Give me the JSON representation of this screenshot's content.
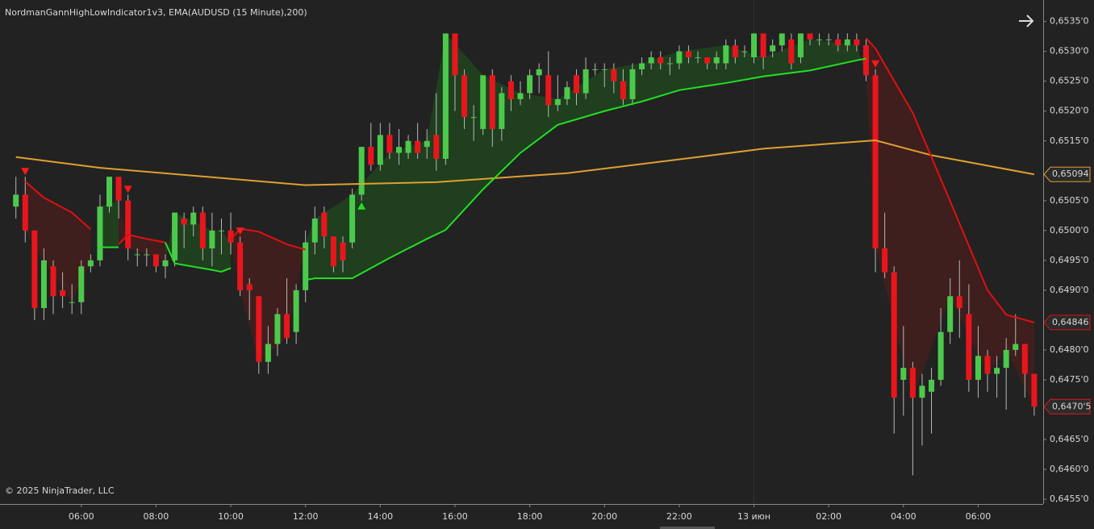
{
  "chart_data": {
    "type": "candlestick",
    "title": "NordmanGannHighLowIndicator1v3, EMA(AUDUSD (15 Minute),200)",
    "copyright": "© 2025 NinjaTrader, LLC",
    "categories": [
      null,
      null,
      null,
      null,
      null,
      null,
      null,
      "06:00",
      null,
      null,
      null,
      null,
      null,
      null,
      null,
      "08:00",
      null,
      null,
      null,
      null,
      null,
      null,
      null,
      "10:00",
      null,
      null,
      null,
      null,
      null,
      null,
      null,
      "12:00",
      null,
      null,
      null,
      null,
      null,
      null,
      null,
      "14:00",
      null,
      null,
      null,
      null,
      null,
      null,
      null,
      "16:00",
      null,
      null,
      null,
      null,
      null,
      null,
      null,
      "18:00",
      null,
      null,
      null,
      null,
      null,
      null,
      null,
      "20:00",
      null,
      null,
      null,
      null,
      null,
      null,
      null,
      "22:00",
      null,
      null,
      null,
      null,
      null,
      null,
      null,
      "13 июн",
      null,
      null,
      null,
      null,
      null,
      null,
      null,
      "02:00",
      null,
      null,
      null,
      null,
      null,
      null,
      null,
      "04:00",
      null,
      null,
      null,
      null,
      null,
      null,
      null,
      "06:00",
      null,
      null,
      null,
      null,
      null,
      null
    ],
    "ylim": [
      0.64542,
      0.65386
    ],
    "yticks": [
      {
        "value": 0.6535,
        "label": "0,6535'0"
      },
      {
        "value": 0.653,
        "label": "0,6530'0"
      },
      {
        "value": 0.6525,
        "label": "0,6525'0"
      },
      {
        "value": 0.652,
        "label": "0,6520'0"
      },
      {
        "value": 0.6515,
        "label": "0,6515'0"
      },
      {
        "value": 0.6505,
        "label": "0,6505'0"
      },
      {
        "value": 0.65,
        "label": "0,6500'0"
      },
      {
        "value": 0.6495,
        "label": "0,6495'0"
      },
      {
        "value": 0.649,
        "label": "0,6490'0"
      },
      {
        "value": 0.648,
        "label": "0,6480'0"
      },
      {
        "value": 0.6475,
        "label": "0,6475'0"
      },
      {
        "value": 0.6465,
        "label": "0,6465'0"
      },
      {
        "value": 0.646,
        "label": "0,6460'0"
      },
      {
        "value": 0.6455,
        "label": "0,6455'0"
      }
    ],
    "up_color": "#4cc94c",
    "down_color": "#e8161c",
    "wick_color": "#b8b8b8",
    "open": [
      0.6504,
      0.6506,
      0.65,
      0.6487,
      0.6494,
      0.649,
      0.6488,
      0.6488,
      0.6494,
      0.6495,
      0.6504,
      0.6509,
      0.6505,
      0.6496,
      0.6496,
      0.6496,
      0.6494,
      0.6495,
      0.6502,
      0.6501,
      0.6503,
      0.6497,
      0.65,
      0.65,
      0.6498,
      0.6491,
      0.6489,
      0.6478,
      0.6481,
      0.6486,
      0.6483,
      0.649,
      0.6498,
      0.6503,
      0.6499,
      0.6498,
      0.6498,
      0.6506,
      0.6514,
      0.6511,
      0.6516,
      0.6513,
      0.6513,
      0.6515,
      0.6514,
      0.6516,
      0.6512,
      0.6533,
      0.6526,
      0.6519,
      0.6517,
      0.6526,
      0.6517,
      0.6525,
      0.6522,
      0.6523,
      0.6526,
      0.6526,
      0.6521,
      0.6522,
      0.6526,
      0.6523,
      0.6527,
      0.6527,
      0.6527,
      0.6525,
      0.6522,
      0.6527,
      0.6528,
      0.6529,
      0.6528,
      0.6528,
      0.653,
      0.6529,
      0.6529,
      0.6528,
      0.6528,
      0.6531,
      0.653,
      0.6529,
      0.6533,
      0.653,
      0.6531,
      0.6532,
      0.6529,
      0.6533,
      0.6532,
      0.6532,
      0.6532,
      0.6531,
      0.6532,
      0.6531,
      0.6526,
      0.6497,
      0.6493,
      0.6475,
      0.6477,
      0.6472,
      0.6473,
      0.6475,
      0.6483,
      0.6489,
      0.6486,
      0.6475,
      0.6479,
      0.6476,
      0.6477,
      0.648,
      0.6481,
      0.6476
    ],
    "high": [
      0.6509,
      0.6509,
      0.65,
      0.6497,
      0.6495,
      0.6493,
      0.6491,
      0.6495,
      0.6496,
      0.6506,
      0.6509,
      0.6509,
      0.6506,
      0.6497,
      0.6497,
      0.6496,
      0.6496,
      0.6503,
      0.6503,
      0.6504,
      0.6504,
      0.6503,
      0.6502,
      0.6503,
      0.6499,
      0.6492,
      0.6489,
      0.6484,
      0.6487,
      0.6492,
      0.6491,
      0.65,
      0.6504,
      0.6504,
      0.6499,
      0.6499,
      0.6507,
      0.6514,
      0.6518,
      0.6518,
      0.6518,
      0.6517,
      0.6516,
      0.6518,
      0.6517,
      0.6523,
      0.6533,
      0.6533,
      0.6527,
      0.6521,
      0.6526,
      0.6527,
      0.6524,
      0.6526,
      0.6525,
      0.6527,
      0.6528,
      0.653,
      0.6526,
      0.6525,
      0.6527,
      0.6529,
      0.6528,
      0.6528,
      0.6528,
      0.6527,
      0.6528,
      0.6529,
      0.653,
      0.653,
      0.6529,
      0.6531,
      0.6531,
      0.653,
      0.6529,
      0.653,
      0.6532,
      0.6532,
      0.6531,
      0.6533,
      0.6533,
      0.6532,
      0.6533,
      0.6533,
      0.6533,
      0.6533,
      0.6533,
      0.6533,
      0.6533,
      0.6533,
      0.6533,
      0.6532,
      0.6527,
      0.6503,
      0.6494,
      0.6484,
      0.6478,
      0.6476,
      0.6477,
      0.6487,
      0.6492,
      0.6495,
      0.6491,
      0.6484,
      0.648,
      0.6479,
      0.6482,
      0.6486,
      0.6481,
      0.6476
    ],
    "low": [
      0.6502,
      0.6498,
      0.6485,
      0.6485,
      0.6486,
      0.6487,
      0.6486,
      0.6486,
      0.6493,
      0.6494,
      0.6503,
      0.6502,
      0.6495,
      0.6494,
      0.6494,
      0.6493,
      0.6492,
      0.6494,
      0.6497,
      0.6499,
      0.6495,
      0.6494,
      0.6496,
      0.6496,
      0.6489,
      0.6485,
      0.6476,
      0.6476,
      0.6479,
      0.6481,
      0.6481,
      0.6488,
      0.6496,
      0.6497,
      0.6493,
      0.6493,
      0.6497,
      0.6505,
      0.651,
      0.651,
      0.6512,
      0.6511,
      0.6512,
      0.6512,
      0.6512,
      0.651,
      0.6511,
      0.652,
      0.6517,
      0.6515,
      0.6516,
      0.6514,
      0.6515,
      0.652,
      0.6521,
      0.6522,
      0.6523,
      0.6519,
      0.652,
      0.6521,
      0.6521,
      0.6522,
      0.6526,
      0.6524,
      0.6523,
      0.6521,
      0.6521,
      0.6526,
      0.6527,
      0.6527,
      0.6526,
      0.6527,
      0.6528,
      0.6528,
      0.6527,
      0.6527,
      0.6527,
      0.6528,
      0.6529,
      0.6528,
      0.6527,
      0.6529,
      0.653,
      0.6527,
      0.6528,
      0.6531,
      0.6531,
      0.6531,
      0.653,
      0.653,
      0.653,
      0.6525,
      0.6493,
      0.6492,
      0.6466,
      0.6469,
      0.6459,
      0.6464,
      0.6466,
      0.6474,
      0.6481,
      0.6482,
      0.6473,
      0.6472,
      0.6473,
      0.6472,
      0.647,
      0.6479,
      0.6472,
      0.6469
    ],
    "close": [
      0.6506,
      0.65,
      0.6487,
      0.6495,
      0.6489,
      0.6489,
      0.6488,
      0.6494,
      0.6495,
      0.6504,
      0.6509,
      0.6505,
      0.6497,
      0.6496,
      0.6496,
      0.6494,
      0.6495,
      0.6503,
      0.6501,
      0.6503,
      0.6497,
      0.65,
      0.65,
      0.6498,
      0.649,
      0.649,
      0.6478,
      0.6481,
      0.6486,
      0.6482,
      0.649,
      0.6498,
      0.6502,
      0.6499,
      0.6494,
      0.6495,
      0.6506,
      0.6514,
      0.6511,
      0.6516,
      0.6513,
      0.6514,
      0.6515,
      0.6513,
      0.6515,
      0.6512,
      0.6533,
      0.6526,
      0.6519,
      0.6519,
      0.6526,
      0.6517,
      0.6523,
      0.6522,
      0.6523,
      0.6526,
      0.6527,
      0.6521,
      0.6522,
      0.6524,
      0.6523,
      0.6527,
      0.6527,
      0.6527,
      0.6525,
      0.6522,
      0.6527,
      0.6528,
      0.6529,
      0.6528,
      0.6528,
      0.653,
      0.6529,
      0.6529,
      0.6528,
      0.6529,
      0.6531,
      0.6529,
      0.653,
      0.6533,
      0.6529,
      0.6531,
      0.6533,
      0.6528,
      0.6533,
      0.6532,
      0.6532,
      0.6532,
      0.6531,
      0.6532,
      0.6531,
      0.6526,
      0.6497,
      0.6493,
      0.6472,
      0.6477,
      0.6472,
      0.6474,
      0.6475,
      0.6483,
      0.6489,
      0.6487,
      0.6475,
      0.6479,
      0.6476,
      0.6477,
      0.648,
      0.6481,
      0.6476,
      0.64705
    ],
    "lines": [
      {
        "color": "#e0a030",
        "x": [
          0,
          9,
          31,
          45,
          59,
          73,
          80,
          92,
          98,
          109
        ],
        "values": [
          0.65123,
          0.65105,
          0.65076,
          0.65081,
          0.65096,
          0.65123,
          0.65137,
          0.65151,
          0.65126,
          0.65094
        ]
      },
      {
        "color": "#e01010",
        "fill": "#4a1e1e",
        "x": [
          1,
          3,
          6,
          8
        ],
        "values": [
          0.65082,
          0.65055,
          0.6503,
          0.65002
        ]
      },
      {
        "color": "#22e022",
        "fill": "#1f4a1f",
        "x": [
          9,
          11
        ],
        "values": [
          0.64972,
          0.64972
        ]
      },
      {
        "color": "#e01010",
        "fill": "#4a1e1e",
        "x": [
          11,
          12,
          14,
          16
        ],
        "values": [
          0.64977,
          0.64993,
          0.64986,
          0.6498
        ]
      },
      {
        "color": "#22e022",
        "fill": "#1f4a1f",
        "x": [
          16,
          17,
          21,
          22,
          23
        ],
        "values": [
          0.6498,
          0.64945,
          0.64934,
          0.64931,
          0.64937
        ]
      },
      {
        "color": "#e01010",
        "fill": "#4a1e1e",
        "x": [
          23,
          24,
          26,
          29,
          31
        ],
        "values": [
          0.64985,
          0.65003,
          0.64998,
          0.64977,
          0.64968
        ]
      },
      {
        "color": "#22e022",
        "fill": "#1f4a1f",
        "x": [
          31,
          32,
          36,
          40,
          44,
          46,
          50,
          54,
          58,
          63,
          67,
          71,
          76,
          80,
          85,
          90,
          91
        ],
        "values": [
          0.64917,
          0.6492,
          0.6492,
          0.64954,
          0.64986,
          0.65001,
          0.65069,
          0.6513,
          0.65177,
          0.652,
          0.65216,
          0.65235,
          0.65247,
          0.65258,
          0.65268,
          0.65285,
          0.65288
        ]
      },
      {
        "color": "#e01010",
        "fill": "#4a1e1e",
        "x": [
          91,
          92,
          96,
          100,
          104,
          106,
          109
        ],
        "values": [
          0.65322,
          0.65305,
          0.65197,
          0.65049,
          0.649,
          0.64859,
          0.64846
        ]
      }
    ],
    "signals_down": [
      1,
      12,
      24,
      92
    ],
    "signals_up": [
      37
    ],
    "price_markers": [
      {
        "value": 0.65094,
        "label": "0,65094",
        "color": "#e0a030"
      },
      {
        "value": 0.64846,
        "label": "0,64846",
        "color": "#e01010"
      },
      {
        "value": 0.64705,
        "label": "0,6470'5",
        "color": "#e8161c"
      }
    ]
  }
}
